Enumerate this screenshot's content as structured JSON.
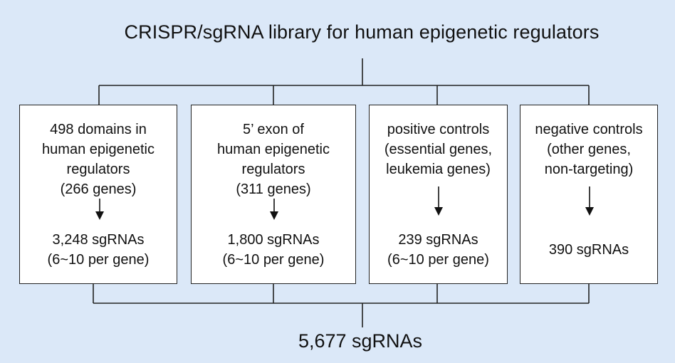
{
  "title": "CRISPR/sgRNA library for human epigenetic regulators",
  "categories": [
    {
      "description": [
        "498 domains in",
        "human epigenetic",
        "regulators",
        "(266 genes)"
      ],
      "result": [
        "3,248 sgRNAs",
        "(6~10 per gene)"
      ]
    },
    {
      "description": [
        "5’ exon of",
        "human epigenetic",
        "regulators",
        "(311 genes)"
      ],
      "result": [
        "1,800 sgRNAs",
        "(6~10 per gene)"
      ]
    },
    {
      "description": [
        "positive controls",
        "(essential genes,",
        "leukemia genes)"
      ],
      "result": [
        "239 sgRNAs",
        "(6~10 per gene)"
      ]
    },
    {
      "description": [
        "negative controls",
        "(other genes,",
        "non-targeting)"
      ],
      "result": [
        "390 sgRNAs"
      ]
    }
  ],
  "total": "5,677 sgRNAs",
  "colors": {
    "background": "#dbe8f8",
    "box_fill": "#ffffff",
    "line": "#222222"
  }
}
